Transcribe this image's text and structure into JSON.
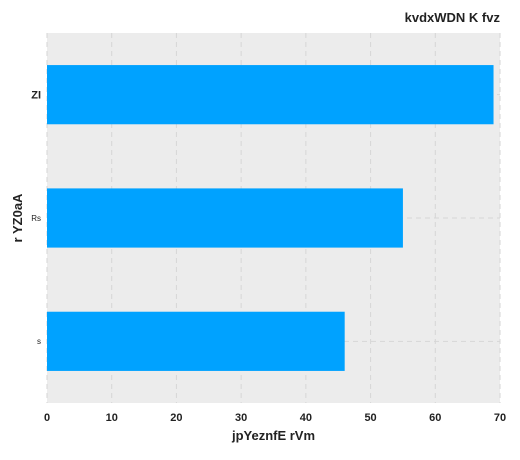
{
  "chart_data": {
    "type": "bar",
    "orientation": "horizontal",
    "title": "kvdxWDN K  fvz",
    "xlabel": "jpYeznfE rVm",
    "ylabel": "r YZ0aA",
    "categories": [
      "ZI",
      "Rs",
      "s"
    ],
    "values": [
      69,
      55,
      46
    ],
    "xlim": [
      0,
      70
    ],
    "xticks": [
      0,
      10,
      20,
      30,
      40,
      50,
      60,
      70
    ],
    "grid": true,
    "bar_color": "#00a2ff",
    "background_color": "#ececec",
    "grid_color": "#d6d6d6"
  }
}
